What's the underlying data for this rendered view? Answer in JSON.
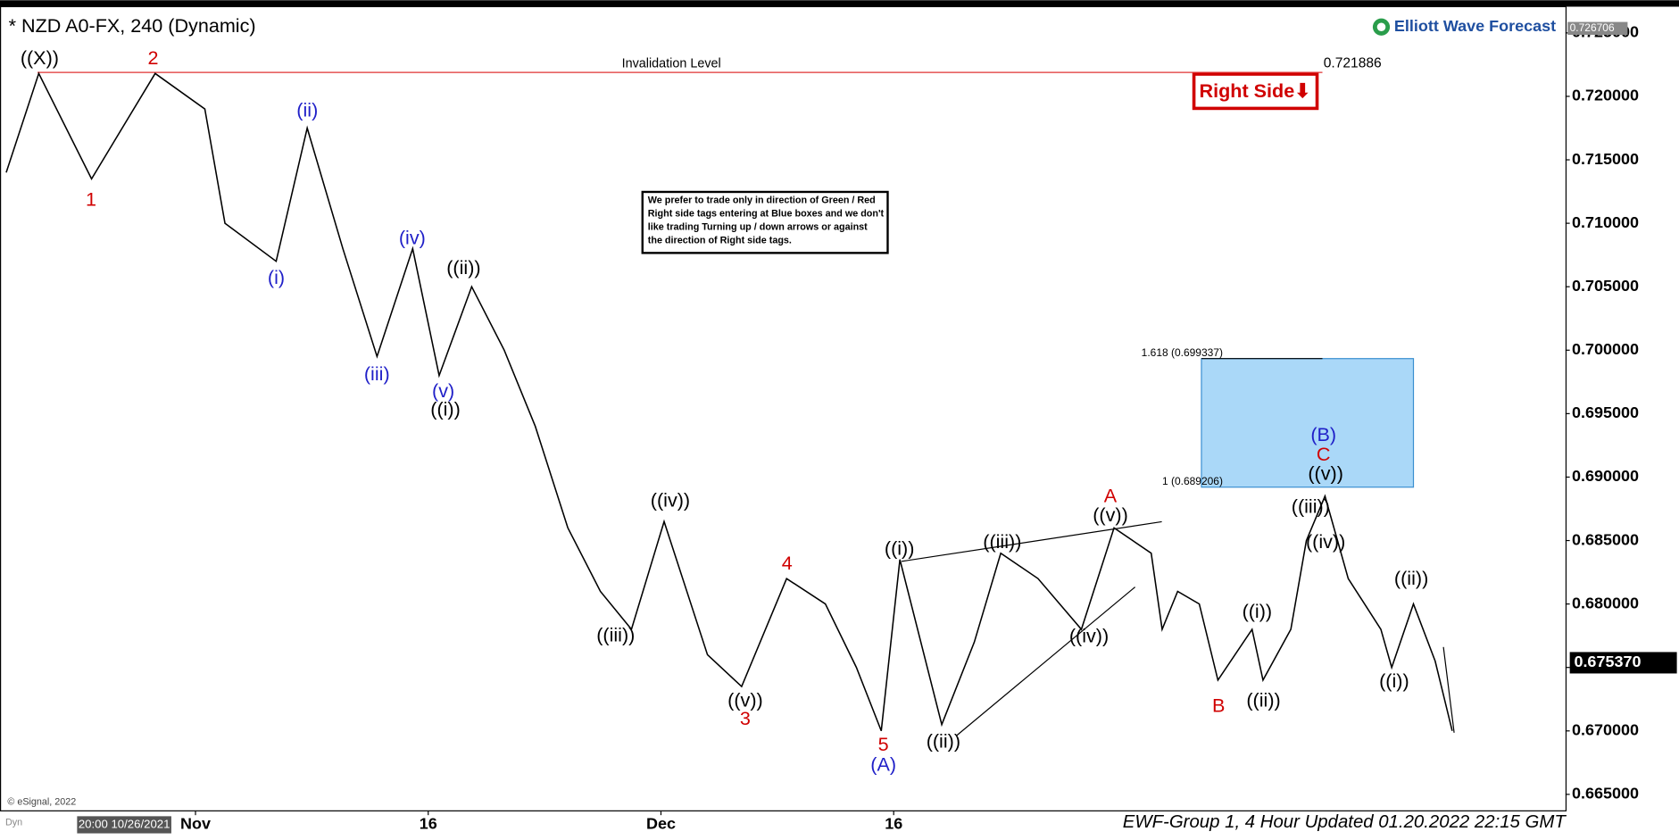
{
  "chart_data": {
    "type": "line",
    "title": "* NZD A0-FX, 240 (Dynamic)",
    "brand": "Elliott Wave Forecast",
    "source": "© eSignal, 2022",
    "cursor_time": "20:00 10/26/2021",
    "dyn": "Dyn",
    "footer": "EWF-Group 1, 4 Hour Updated 01.20.2022 22:15 GMT",
    "color": "#000000",
    "x": [
      -12.2,
      -10.1,
      -6.7,
      -2.6,
      0.6,
      1.9,
      5.2,
      7.2,
      9.5,
      11.7,
      14.0,
      15.7,
      17.8,
      19.9,
      21.9,
      24.0,
      26.1,
      28.1,
      30.2,
      33.0,
      35.2,
      38.1,
      40.6,
      42.6,
      44.2,
      45.4,
      48.1,
      50.2,
      51.9,
      54.3,
      57.1,
      59.2,
      61.6,
      62.3,
      63.3,
      64.7,
      65.9,
      68.1,
      68.8,
      70.6,
      71.6,
      72.8,
      74.3,
      76.4,
      77.1,
      78.5,
      79.9,
      81.0
    ],
    "values": [
      0.714,
      0.7218,
      0.7135,
      0.7218,
      0.719,
      0.71,
      0.707,
      0.7175,
      0.708,
      0.6995,
      0.708,
      0.698,
      0.705,
      0.7,
      0.694,
      0.686,
      0.681,
      0.678,
      0.6865,
      0.676,
      0.6735,
      0.682,
      0.68,
      0.675,
      0.67,
      0.6835,
      0.6705,
      0.677,
      0.684,
      0.682,
      0.678,
      0.686,
      0.684,
      0.678,
      0.681,
      0.68,
      0.674,
      0.678,
      0.674,
      0.678,
      0.685,
      0.6885,
      0.682,
      0.678,
      0.675,
      0.68,
      0.6755,
      0.67
    ],
    "xlim": [
      -12.6,
      88.3
    ],
    "xticks": [
      {
        "value": 0,
        "label": "Nov"
      },
      {
        "value": 15,
        "label": "16"
      },
      {
        "value": 30,
        "label": "Dec"
      },
      {
        "value": 45,
        "label": "16"
      }
    ],
    "ylim": [
      0.6637,
      0.7269
    ],
    "yticks": [
      {
        "value": 0.665,
        "label": "0.665000"
      },
      {
        "value": 0.67,
        "label": "0.670000"
      },
      {
        "value": 0.675,
        "label": "0.675000"
      },
      {
        "value": 0.68,
        "label": "0.680000"
      },
      {
        "value": 0.685,
        "label": "0.685000"
      },
      {
        "value": 0.69,
        "label": "0.690000"
      },
      {
        "value": 0.695,
        "label": "0.695000"
      },
      {
        "value": 0.7,
        "label": "0.700000"
      },
      {
        "value": 0.705,
        "label": "0.705000"
      },
      {
        "value": 0.71,
        "label": "0.710000"
      },
      {
        "value": 0.715,
        "label": "0.715000"
      },
      {
        "value": 0.72,
        "label": "0.720000"
      },
      {
        "value": 0.725,
        "label": "0.725000"
      }
    ],
    "top_price": 0.726706,
    "last_price": {
      "value": 0.67537,
      "label": "0.675370"
    },
    "invalidation": {
      "label": "Invalidation Level",
      "value": 0.721886
    },
    "fib_levels": [
      {
        "value": 0.699337,
        "label": "1.618 (0.699337)"
      },
      {
        "value": 0.689206,
        "label": "1 (0.689206)"
      }
    ],
    "right_side_tag": "Right Side⬇",
    "note": [
      "We prefer to trade only in direction of Green / Red",
      "Right side tags entering at Blue boxes and we don't",
      "like trading Turning up / down arrows or against",
      "the direction of Right side tags."
    ],
    "wave_labels": [
      {
        "text": "((X))",
        "color": "#000000"
      },
      {
        "text": "2",
        "color": "#d00000"
      },
      {
        "text": "1",
        "color": "#d00000"
      },
      {
        "text": "(ii)",
        "color": "#1f1fc8"
      },
      {
        "text": "(i)",
        "color": "#1f1fc8"
      },
      {
        "text": "(iv)",
        "color": "#1f1fc8"
      },
      {
        "text": "((ii))",
        "color": "#000000"
      },
      {
        "text": "(iii)",
        "color": "#1f1fc8"
      },
      {
        "text": "(v)",
        "color": "#1f1fc8"
      },
      {
        "text": "((i))",
        "color": "#000000"
      },
      {
        "text": "((iv))",
        "color": "#000000"
      },
      {
        "text": "((iii))",
        "color": "#000000"
      },
      {
        "text": "((v))",
        "color": "#000000"
      },
      {
        "text": "3",
        "color": "#d00000"
      },
      {
        "text": "4",
        "color": "#d00000"
      },
      {
        "text": "5",
        "color": "#d00000"
      },
      {
        "text": "(A)",
        "color": "#1f1fc8"
      },
      {
        "text": "((i))",
        "color": "#000000"
      },
      {
        "text": "((ii))",
        "color": "#000000"
      },
      {
        "text": "((iii))",
        "color": "#000000"
      },
      {
        "text": "((iv))",
        "color": "#000000"
      },
      {
        "text": "A",
        "color": "#d00000"
      },
      {
        "text": "((v))",
        "color": "#000000"
      },
      {
        "text": "B",
        "color": "#d00000"
      },
      {
        "text": "((i))",
        "color": "#000000"
      },
      {
        "text": "((ii))",
        "color": "#000000"
      },
      {
        "text": "(B)",
        "color": "#1f1fc8"
      },
      {
        "text": "C",
        "color": "#d00000"
      },
      {
        "text": "((v))",
        "color": "#000000"
      },
      {
        "text": "((iii))",
        "color": "#000000"
      },
      {
        "text": "((iv))",
        "color": "#000000"
      },
      {
        "text": "((ii))",
        "color": "#000000"
      },
      {
        "text": "((i))",
        "color": "#000000"
      }
    ]
  }
}
